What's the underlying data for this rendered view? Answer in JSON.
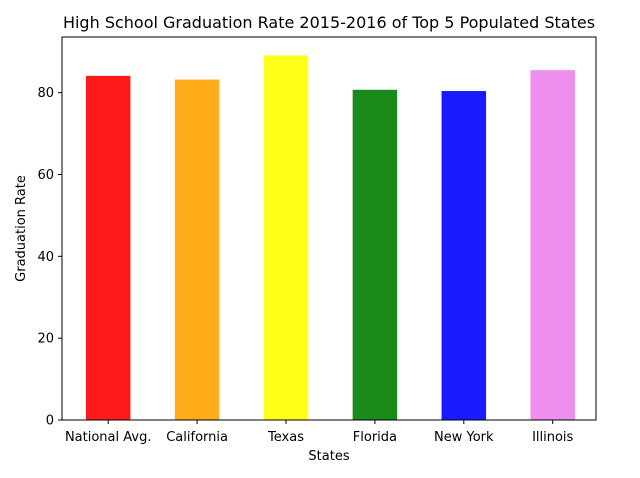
{
  "chart_data": {
    "type": "bar",
    "title": "High School Graduation Rate 2015-2016 of Top 5 Populated States",
    "xlabel": "States",
    "ylabel": "Graduation Rate",
    "categories": [
      "National Avg.",
      "California",
      "Texas",
      "Florida",
      "New York",
      "Illinois"
    ],
    "values": [
      84.1,
      83.2,
      89.1,
      80.7,
      80.4,
      85.5
    ],
    "colors": [
      "#ff1a1a",
      "#ffab1a",
      "#ffff1a",
      "#1a8a1a",
      "#1a1aff",
      "#ee8eee"
    ],
    "ylim": [
      0,
      93.6
    ],
    "yticks": [
      0,
      20,
      40,
      60,
      80
    ],
    "grid": false,
    "legend": "none"
  }
}
